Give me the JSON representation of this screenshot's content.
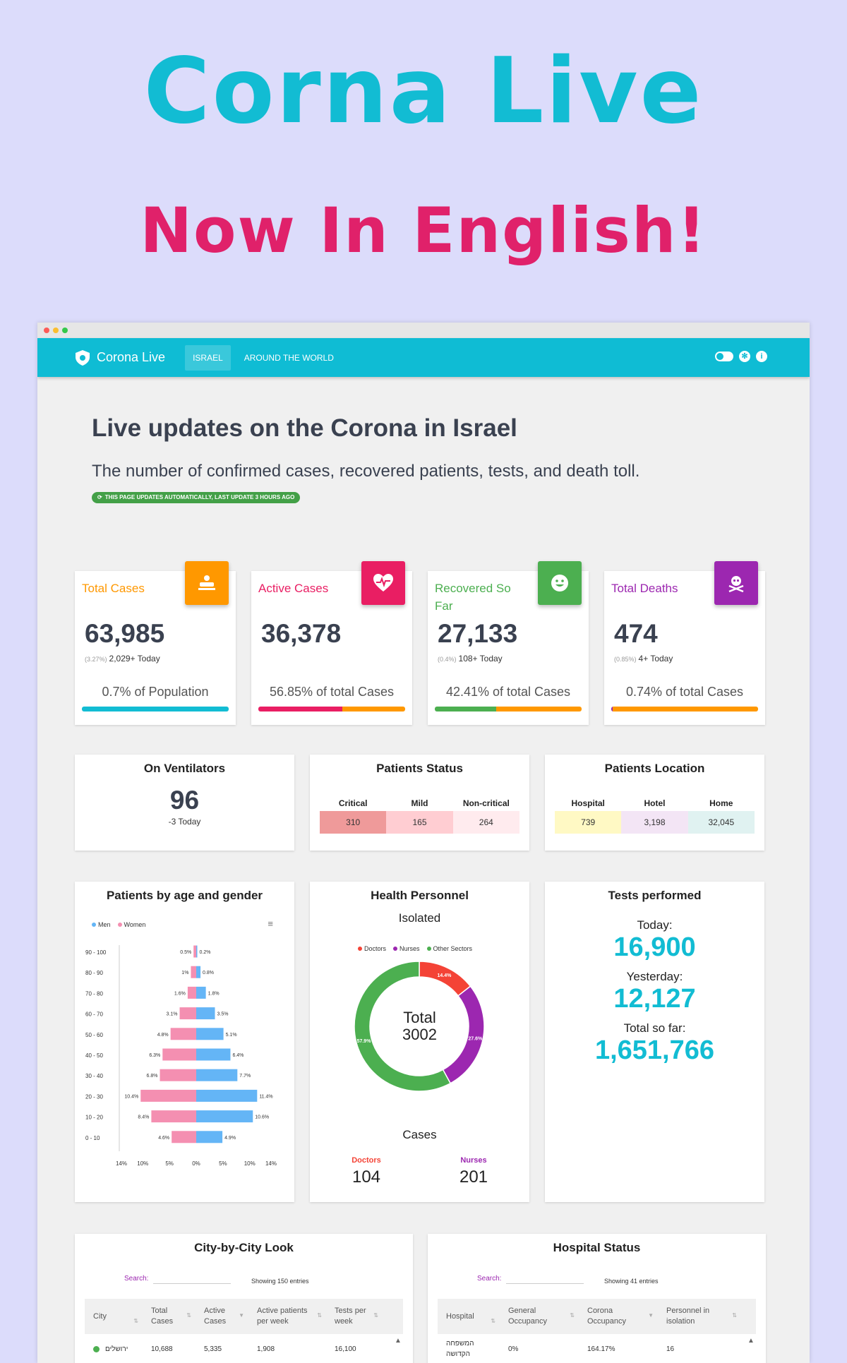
{
  "promo": {
    "title": "Corna Live",
    "subtitle": "Now In English!"
  },
  "navbar": {
    "brand": "Corona Live",
    "tabs": [
      "ISRAEL",
      "AROUND THE WORLD"
    ]
  },
  "header": {
    "title": "Live updates on the Corona in Israel",
    "description": "The number of confirmed cases, recovered patients, tests, and death toll.",
    "update_badge": "THIS PAGE UPDATES AUTOMATICALLY, LAST UPDATE 3 HOURS AGO"
  },
  "stats": [
    {
      "label": "Total Cases",
      "value": "63,985",
      "pct": "(3.27%)",
      "today": "2,029+ Today",
      "foot": "0.7% of Population",
      "color": "#ff9800",
      "icon": "patient-icon"
    },
    {
      "label": "Active Cases",
      "value": "36,378",
      "pct": "",
      "today": "",
      "foot": "56.85% of total Cases",
      "color": "#e91e63",
      "icon": "heartbeat-icon"
    },
    {
      "label": "Recovered So Far",
      "value": "27,133",
      "pct": "(0.4%)",
      "today": "108+ Today",
      "foot": "42.41% of total Cases",
      "color": "#4caf50",
      "icon": "smile-icon"
    },
    {
      "label": "Total Deaths",
      "value": "474",
      "pct": "(0.85%)",
      "today": "4+ Today",
      "foot": "0.74% of total Cases",
      "color": "#9c27b0",
      "icon": "skull-icon"
    }
  ],
  "ventilators": {
    "title": "On Ventilators",
    "value": "96",
    "today": "-3 Today"
  },
  "patients_status": {
    "title": "Patients Status",
    "headers": [
      "Critical",
      "Mild",
      "Non-critical"
    ],
    "values": [
      "310",
      "165",
      "264"
    ]
  },
  "patients_location": {
    "title": "Patients Location",
    "headers": [
      "Hospital",
      "Hotel",
      "Home"
    ],
    "values": [
      "739",
      "3,198",
      "32,045"
    ]
  },
  "age_chart": {
    "title": "Patients by age and gender",
    "legend": [
      "Men",
      "Women"
    ],
    "colors": {
      "men": "#64b5f6",
      "women": "#f48fb1"
    },
    "chart_data": {
      "type": "bar",
      "categories": [
        "90 - 100",
        "80 - 90",
        "70 - 80",
        "60 - 70",
        "50 - 60",
        "40 - 50",
        "30 - 40",
        "20 - 30",
        "10 - 20",
        "0 - 10"
      ],
      "series": [
        {
          "name": "Women",
          "values": [
            0.5,
            1,
            1.6,
            3.1,
            4.8,
            6.3,
            6.8,
            10.4,
            8.4,
            4.6
          ]
        },
        {
          "name": "Men",
          "values": [
            0.2,
            0.8,
            1.8,
            3.5,
            5.1,
            6.4,
            7.7,
            11.4,
            10.6,
            4.9
          ]
        }
      ],
      "labels_women": [
        "0.5%",
        "1%",
        "1.6%",
        "3.1%",
        "4.8%",
        "6.3%",
        "6.8%",
        "10.4%",
        "8.4%",
        "4.6%"
      ],
      "labels_men": [
        "0.2%",
        "0.8%",
        "1.8%",
        "3.5%",
        "5.1%",
        "6.4%",
        "7.7%",
        "11.4%",
        "10.6%",
        "4.9%"
      ],
      "x_ticks": [
        "14%",
        "10%",
        "5%",
        "0%",
        "5%",
        "10%",
        "14%"
      ],
      "x_tick_values": [
        -14,
        -10,
        -5,
        0,
        5,
        10,
        14
      ],
      "xlim": [
        -14,
        14
      ]
    }
  },
  "health_personnel": {
    "title": "Health Personnel",
    "subtitle": "Isolated",
    "legend": [
      "Doctors",
      "Nurses",
      "Other Sectors"
    ],
    "colors": [
      "#f44336",
      "#9c27b0",
      "#4caf50"
    ],
    "center_label": "Total",
    "center_value": "3002",
    "chart_data": {
      "type": "pie",
      "categories": [
        "Doctors",
        "Nurses",
        "Other Sectors"
      ],
      "values": [
        14.4,
        27.6,
        57.9
      ],
      "labels": [
        "14.4%",
        "27.6%",
        "57.9%"
      ]
    },
    "cases_title": "Cases",
    "cases": [
      {
        "label": "Doctors",
        "value": "104"
      },
      {
        "label": "Nurses",
        "value": "201"
      }
    ]
  },
  "tests": {
    "title": "Tests performed",
    "today_label": "Today:",
    "today_value": "16,900",
    "yesterday_label": "Yesterday:",
    "yesterday_value": "12,127",
    "total_label": "Total so far:",
    "total_value": "1,651,766"
  },
  "city_table": {
    "title": "City-by-City Look",
    "search_label": "Search:",
    "showing": "Showing 150 entries",
    "columns": [
      "City",
      "Total Cases",
      "Active Cases",
      "Active patients per week",
      "Tests per week"
    ],
    "row": [
      "ירושלים",
      "10,688",
      "5,335",
      "1,908",
      "16,100"
    ]
  },
  "hospital_table": {
    "title": "Hospital Status",
    "search_label": "Search:",
    "showing": "Showing 41 entries",
    "columns": [
      "Hospital",
      "General Occupancy",
      "Corona Occupancy",
      "Personnel in isolation"
    ],
    "row": [
      "המשפחה הקדושה",
      "0%",
      "164.17%",
      "16"
    ]
  }
}
